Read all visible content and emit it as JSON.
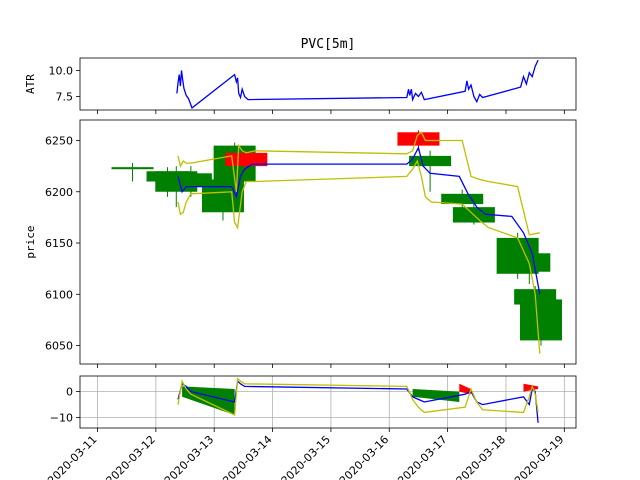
{
  "chart_data": {
    "type": "candlestick",
    "title": "PVC[5m]",
    "x_ticks": [
      "2020-03-11",
      "2020-03-12",
      "2020-03-13",
      "2020-03-14",
      "2020-03-15",
      "2020-03-16",
      "2020-03-17",
      "2020-03-18",
      "2020-03-19"
    ],
    "x_tick_values": [
      11,
      12,
      13,
      14,
      15,
      16,
      17,
      18,
      19
    ],
    "xlim": [
      10.7,
      19.2
    ],
    "colors": {
      "up": "#ff0000",
      "down": "#008000",
      "mid": "#0000ff",
      "band": "#bfbf00",
      "grid": "#b0b0b0"
    },
    "panels": [
      {
        "name": "atr",
        "ylabel": "ATR",
        "ylim": [
          6.2,
          11.2
        ],
        "yticks": [
          7.5,
          10.0
        ],
        "ytick_labels": [
          "7.5",
          "10.0"
        ],
        "series": [
          {
            "name": "ATR",
            "color": "#0000ff",
            "x": [
              12.36,
              12.38,
              12.4,
              12.42,
              12.44,
              12.46,
              12.48,
              12.52,
              12.56,
              12.62,
              13.35,
              13.38,
              13.4,
              13.42,
              13.45,
              13.48,
              13.52,
              13.58,
              16.3,
              16.33,
              16.35,
              16.38,
              16.4,
              16.45,
              16.5,
              16.55,
              16.6,
              17.3,
              17.33,
              17.36,
              17.4,
              17.45,
              17.5,
              17.55,
              17.6,
              18.25,
              18.3,
              18.35,
              18.4,
              18.45,
              18.5,
              18.55
            ],
            "y": [
              7.8,
              8.8,
              9.6,
              8.5,
              10.0,
              9.1,
              8.3,
              7.6,
              7.3,
              6.4,
              9.6,
              8.9,
              9.3,
              7.8,
              7.4,
              8.2,
              7.5,
              7.2,
              7.4,
              8.2,
              7.6,
              8.2,
              7.2,
              7.8,
              7.5,
              7.9,
              7.2,
              8.0,
              9.0,
              8.2,
              8.6,
              7.5,
              7.0,
              7.7,
              7.4,
              8.4,
              9.4,
              8.7,
              9.8,
              9.4,
              10.4,
              11.0
            ]
          }
        ]
      },
      {
        "name": "price",
        "ylabel": "price",
        "ylim": [
          6032,
          6270
        ],
        "yticks": [
          6050,
          6100,
          6150,
          6200,
          6250
        ],
        "ytick_labels": [
          "6050",
          "6100",
          "6150",
          "6200",
          "6250"
        ],
        "candles": [
          {
            "x": 11.6,
            "o": 6224,
            "c": 6222,
            "h": 6228,
            "l": 6210
          },
          {
            "x": 12.2,
            "o": 6220,
            "c": 6210,
            "h": 6224,
            "l": 6195
          },
          {
            "x": 12.35,
            "o": 6220,
            "c": 6200,
            "h": 6225,
            "l": 6185
          },
          {
            "x": 12.6,
            "o": 6218,
            "c": 6205,
            "h": 6225,
            "l": 6195
          },
          {
            "x": 13.15,
            "o": 6212,
            "c": 6180,
            "h": 6215,
            "l": 6172
          },
          {
            "x": 13.35,
            "o": 6245,
            "c": 6210,
            "h": 6248,
            "l": 6205
          },
          {
            "x": 13.55,
            "o": 6225,
            "c": 6238,
            "h": 6240,
            "l": 6220
          },
          {
            "x": 16.5,
            "o": 6245,
            "c": 6258,
            "h": 6260,
            "l": 6240
          },
          {
            "x": 16.7,
            "o": 6235,
            "c": 6225,
            "h": 6240,
            "l": 6200
          },
          {
            "x": 17.25,
            "o": 6198,
            "c": 6188,
            "h": 6202,
            "l": 6180
          },
          {
            "x": 17.45,
            "o": 6185,
            "c": 6170,
            "h": 6190,
            "l": 6168
          },
          {
            "x": 18.2,
            "o": 6155,
            "c": 6120,
            "h": 6160,
            "l": 6115
          },
          {
            "x": 18.4,
            "o": 6140,
            "c": 6122,
            "h": 6145,
            "l": 6110
          },
          {
            "x": 18.5,
            "o": 6105,
            "c": 6090,
            "h": 6108,
            "l": 6085
          },
          {
            "x": 18.6,
            "o": 6095,
            "c": 6055,
            "h": 6098,
            "l": 6050
          }
        ],
        "series": [
          {
            "name": "mid",
            "color": "#0000ff",
            "x": [
              12.38,
              12.45,
              12.52,
              12.6,
              13.3,
              13.38,
              13.45,
              13.52,
              13.65,
              16.3,
              16.4,
              16.5,
              16.58,
              16.7,
              17.2,
              17.35,
              17.5,
              17.65,
              18.1,
              18.3,
              18.45,
              18.58
            ],
            "y": [
              6215,
              6200,
              6205,
              6205,
              6205,
              6195,
              6215,
              6222,
              6227,
              6227,
              6232,
              6243,
              6225,
              6218,
              6215,
              6198,
              6185,
              6178,
              6176,
              6160,
              6140,
              6100
            ]
          },
          {
            "name": "upper",
            "color": "#bfbf00",
            "x": [
              12.38,
              12.42,
              12.47,
              12.52,
              12.6,
              13.3,
              13.38,
              13.42,
              13.48,
              13.55,
              13.7,
              16.3,
              16.4,
              16.48,
              16.55,
              16.62,
              16.72,
              17.25,
              17.4,
              17.55,
              17.7,
              18.2,
              18.4,
              18.58
            ],
            "y": [
              6235,
              6225,
              6230,
              6228,
              6228,
              6235,
              6200,
              6245,
              6240,
              6238,
              6240,
              6237,
              6240,
              6255,
              6258,
              6250,
              6250,
              6250,
              6215,
              6212,
              6210,
              6205,
              6158,
              6160
            ]
          },
          {
            "name": "lower",
            "color": "#bfbf00",
            "x": [
              12.38,
              12.42,
              12.47,
              12.52,
              12.6,
              13.3,
              13.35,
              13.4,
              13.48,
              13.55,
              13.7,
              16.3,
              16.4,
              16.48,
              16.55,
              16.62,
              16.72,
              17.25,
              17.4,
              17.55,
              17.7,
              18.2,
              18.4,
              18.5,
              18.58
            ],
            "y": [
              6190,
              6178,
              6180,
              6190,
              6198,
              6200,
              6170,
              6165,
              6200,
              6210,
              6210,
              6215,
              6222,
              6230,
              6215,
              6195,
              6190,
              6188,
              6180,
              6172,
              6165,
              6155,
              6130,
              6100,
              6042
            ]
          }
        ]
      },
      {
        "name": "osc",
        "ylabel": "",
        "ylim": [
          -14,
          6
        ],
        "yticks": [
          0,
          -10
        ],
        "ytick_labels": [
          "0",
          "−10"
        ],
        "grid": true,
        "fills": [
          {
            "color": "#008000",
            "x": [
              12.45,
              13.35
            ],
            "y_top": [
              2,
              1
            ],
            "y_bot": [
              -2,
              -9
            ]
          },
          {
            "color": "#008000",
            "x": [
              16.4,
              17.2
            ],
            "y_top": [
              1,
              0
            ],
            "y_bot": [
              -2,
              -4
            ]
          },
          {
            "color": "#ff0000",
            "x": [
              17.2,
              17.4
            ],
            "y_top": [
              3,
              1
            ],
            "y_bot": [
              0,
              -1
            ]
          },
          {
            "color": "#ff0000",
            "x": [
              18.3,
              18.55
            ],
            "y_top": [
              3,
              2
            ],
            "y_bot": [
              0,
              1
            ]
          }
        ],
        "series": [
          {
            "name": "osc",
            "color": "#0000ff",
            "x": [
              12.38,
              12.45,
              12.52,
              12.6,
              13.35,
              13.4,
              13.45,
              13.52,
              16.3,
              16.4,
              16.5,
              16.6,
              17.3,
              17.4,
              17.5,
              17.6,
              18.3,
              18.4,
              18.45,
              18.5,
              18.55
            ],
            "y": [
              -3,
              3,
              2,
              0,
              -4,
              4,
              3,
              2,
              1,
              -2,
              -3,
              -4,
              -1,
              0,
              -4,
              -5,
              -2,
              -5,
              1,
              0,
              -12
            ]
          },
          {
            "name": "signal",
            "color": "#bfbf00",
            "x": [
              12.38,
              12.45,
              12.52,
              12.6,
              13.35,
              13.4,
              13.45,
              13.52,
              16.3,
              16.4,
              16.5,
              16.6,
              17.3,
              17.4,
              17.5,
              17.6,
              18.3,
              18.4,
              18.45,
              18.5,
              18.55
            ],
            "y": [
              -5,
              4,
              1,
              -1,
              -9,
              5,
              4,
              3,
              2,
              -3,
              -6,
              -8,
              -6,
              1,
              -4,
              -7,
              -8,
              -2,
              2,
              -1,
              -8
            ]
          }
        ]
      }
    ]
  }
}
